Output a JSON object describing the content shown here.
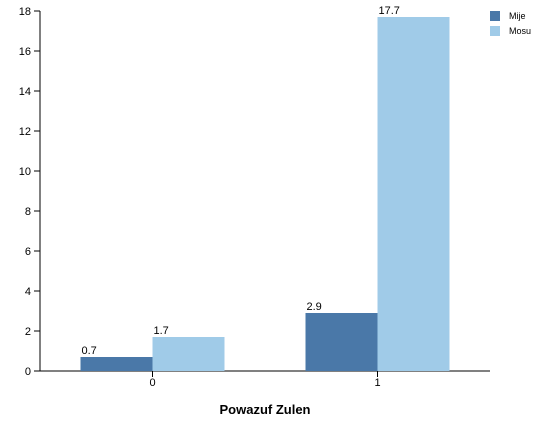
{
  "chart_data": {
    "type": "bar",
    "title": "",
    "xlabel": "Powazuf Zulen",
    "ylabel": "",
    "categories": [
      "0",
      "1"
    ],
    "series": [
      {
        "name": "Mije",
        "values": [
          0.7,
          2.9
        ],
        "color": "#4a78a8"
      },
      {
        "name": "Mosu",
        "values": [
          1.7,
          17.7
        ],
        "color": "#a0cbe8"
      }
    ],
    "ylim": [
      0,
      18
    ],
    "yticks": [
      "0",
      "2",
      "4",
      "6",
      "8",
      "10",
      "12",
      "14",
      "16",
      "18"
    ],
    "grid": false,
    "legend": "top-right"
  }
}
